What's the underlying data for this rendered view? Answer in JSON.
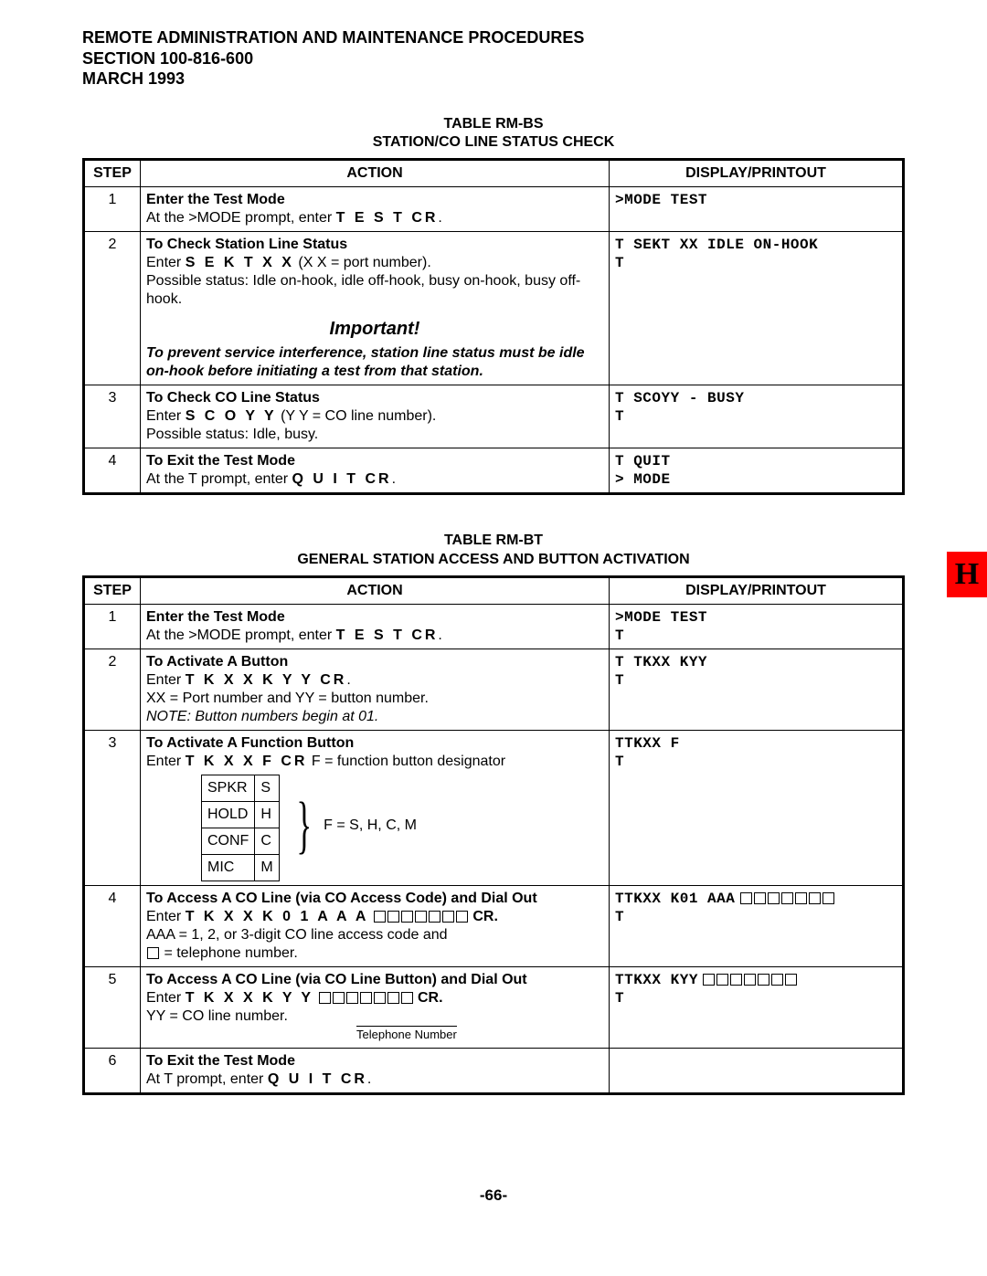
{
  "header": {
    "line1": "REMOTE ADMINISTRATION AND MAINTENANCE PROCEDURES",
    "line2": "SECTION 100-816-600",
    "line3": "MARCH 1993"
  },
  "tab": {
    "letter": "H",
    "bg": "#ff0000"
  },
  "table1": {
    "title1": "TABLE RM-BS",
    "title2": "STATION/CO LINE STATUS CHECK",
    "headers": {
      "step": "STEP",
      "action": "ACTION",
      "disp": "DISPLAY/PRINTOUT"
    },
    "rows": [
      {
        "step": "1",
        "action_title": "Enter the Test Mode",
        "action_body_pre": "At the >MODE prompt, enter ",
        "action_body_cmd": "T E S T CR",
        "action_body_post": ".",
        "disp": ">MODE TEST"
      },
      {
        "step": "2",
        "action_title": "To Check Station Line Status",
        "line2_pre": "Enter ",
        "line2_cmd": "S E K T X X",
        "line2_post": "   (X X = port number).",
        "line3": "Possible status: Idle on-hook, idle off-hook, busy on-hook, busy off-hook.",
        "important": "Important!",
        "impnote": "To prevent service interference, station line status must be idle on-hook before initiating a test from that station.",
        "disp1": "T SEKT XX IDLE ON-HOOK",
        "disp2": "T"
      },
      {
        "step": "3",
        "action_title": "To Check CO Line Status",
        "line2_pre": "Enter ",
        "line2_cmd": "S C O Y Y",
        "line2_post": "   (Y Y = CO line number).",
        "line3": "Possible status: Idle, busy.",
        "disp1": "T SCOYY - BUSY",
        "disp2": "T"
      },
      {
        "step": "4",
        "action_title": "To Exit the Test Mode",
        "line2_pre": "At the T prompt, enter ",
        "line2_cmd": "Q U I T CR",
        "line2_post": ".",
        "disp1": "T QUIT",
        "disp2": "> MODE"
      }
    ]
  },
  "table2": {
    "title1": "TABLE RM-BT",
    "title2": "GENERAL STATION ACCESS AND BUTTON ACTIVATION",
    "headers": {
      "step": "STEP",
      "action": "ACTION",
      "disp": "DISPLAY/PRINTOUT"
    },
    "rows": [
      {
        "step": "1",
        "action_title": "Enter the Test Mode",
        "line2_pre": "At the >MODE prompt, enter ",
        "line2_cmd": "T E S T CR",
        "line2_post": ".",
        "disp1": ">MODE TEST",
        "disp2": "T"
      },
      {
        "step": "2",
        "action_title": "To Activate A Button",
        "line2_pre": "Enter ",
        "line2_cmd": "T K X X K Y Y CR",
        "line2_post": ".",
        "line3": "XX = Port number and YY = button number.",
        "note": "NOTE:  Button numbers begin at 01.",
        "disp1": "T TKXX KYY",
        "disp2": "T"
      },
      {
        "step": "3",
        "action_title": "To Activate A Function Button",
        "line2_pre": "Enter  ",
        "line2_cmd": "T K X X F CR",
        "line2_post": "  F = function button designator",
        "ftable": [
          [
            "SPKR",
            "S"
          ],
          [
            "HOLD",
            "H"
          ],
          [
            "CONF",
            "C"
          ],
          [
            "MIC",
            "M"
          ]
        ],
        "f_label": "F = S, H, C, M",
        "disp1": "TTKXX F",
        "disp2": "T"
      },
      {
        "step": "4",
        "action_title": "To Access A CO Line (via CO Access Code) and Dial Out",
        "line2_pre": "Enter ",
        "line2_cmd": "T K X X K 0 1 A A A",
        "line2_post": " CR.",
        "line3": "AAA = 1, 2, or 3-digit CO line access code and",
        "line4_post": " = telephone number.",
        "disp1": "TTKXX K01 AAA",
        "disp2": "T",
        "boxes_cmd": 7,
        "boxes_disp": 7
      },
      {
        "step": "5",
        "action_title": "To Access A CO Line (via CO Line Button) and Dial Out",
        "line2_pre": "Enter ",
        "line2_cmd": "T K X X K Y Y",
        "line2_post": " CR.",
        "line3": "YY = CO line number.",
        "telnote": "Telephone Number",
        "disp1": "TTKXX KYY",
        "disp2": "T",
        "boxes_cmd": 7,
        "boxes_disp": 7
      },
      {
        "step": "6",
        "action_title": "To Exit the Test Mode",
        "line2_pre": "At T prompt, enter ",
        "line2_cmd": "Q U I T CR",
        "line2_post": "."
      }
    ]
  },
  "page_number": "-66-"
}
